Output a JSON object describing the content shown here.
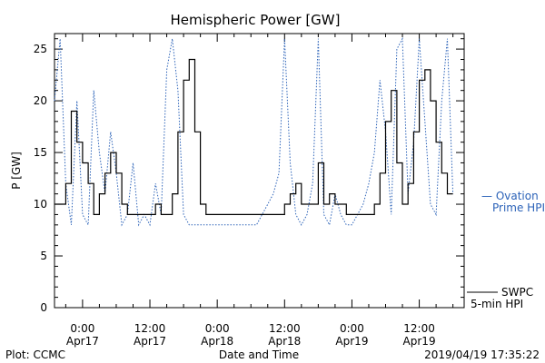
{
  "chart_data": {
    "type": "line",
    "title": "Hemispheric Power [GW]",
    "xlabel": "Date and Time",
    "ylabel": "P [GW]",
    "xlim": [
      "2019-04-16 19:00",
      "2019-04-19 20:00"
    ],
    "ylim": [
      0,
      26.5
    ],
    "yticks": [
      0,
      5,
      10,
      15,
      20,
      25
    ],
    "xticks": [
      {
        "time": "2019-04-17 00:00",
        "line1": "0:00",
        "line2": "Apr17"
      },
      {
        "time": "2019-04-17 12:00",
        "line1": "12:00",
        "line2": "Apr17"
      },
      {
        "time": "2019-04-18 00:00",
        "line1": "0:00",
        "line2": "Apr18"
      },
      {
        "time": "2019-04-18 12:00",
        "line1": "12:00",
        "line2": "Apr18"
      },
      {
        "time": "2019-04-19 00:00",
        "line1": "0:00",
        "line2": "Apr19"
      },
      {
        "time": "2019-04-19 12:00",
        "line1": "12:00",
        "line2": "Apr19"
      }
    ],
    "grid": false,
    "legend_position": "right",
    "series": [
      {
        "name": "SWPC 5-min HPI",
        "legend_lines": [
          "SWPC",
          "5-min HPI"
        ],
        "color": "#000000",
        "style": "solid",
        "x": [
          "2019-04-16 19:00",
          "2019-04-16 20:00",
          "2019-04-16 21:00",
          "2019-04-16 22:00",
          "2019-04-16 23:00",
          "2019-04-17 00:00",
          "2019-04-17 01:00",
          "2019-04-17 02:00",
          "2019-04-17 03:00",
          "2019-04-17 04:00",
          "2019-04-17 05:00",
          "2019-04-17 06:00",
          "2019-04-17 07:00",
          "2019-04-17 08:00",
          "2019-04-17 09:00",
          "2019-04-17 10:00",
          "2019-04-17 11:00",
          "2019-04-17 12:00",
          "2019-04-17 13:00",
          "2019-04-17 14:00",
          "2019-04-17 15:00",
          "2019-04-17 16:00",
          "2019-04-17 17:00",
          "2019-04-17 18:00",
          "2019-04-17 19:00",
          "2019-04-17 20:00",
          "2019-04-17 21:00",
          "2019-04-17 22:00",
          "2019-04-17 23:00",
          "2019-04-18 00:00",
          "2019-04-18 01:00",
          "2019-04-18 02:00",
          "2019-04-18 03:00",
          "2019-04-18 04:00",
          "2019-04-18 05:00",
          "2019-04-18 06:00",
          "2019-04-18 07:00",
          "2019-04-18 08:00",
          "2019-04-18 09:00",
          "2019-04-18 10:00",
          "2019-04-18 11:00",
          "2019-04-18 12:00",
          "2019-04-18 13:00",
          "2019-04-18 14:00",
          "2019-04-18 15:00",
          "2019-04-18 16:00",
          "2019-04-18 17:00",
          "2019-04-18 18:00",
          "2019-04-18 19:00",
          "2019-04-18 20:00",
          "2019-04-18 21:00",
          "2019-04-18 22:00",
          "2019-04-18 23:00",
          "2019-04-19 00:00",
          "2019-04-19 01:00",
          "2019-04-19 02:00",
          "2019-04-19 03:00",
          "2019-04-19 04:00",
          "2019-04-19 05:00",
          "2019-04-19 06:00",
          "2019-04-19 07:00",
          "2019-04-19 08:00",
          "2019-04-19 09:00",
          "2019-04-19 10:00",
          "2019-04-19 11:00",
          "2019-04-19 12:00",
          "2019-04-19 13:00",
          "2019-04-19 14:00",
          "2019-04-19 15:00",
          "2019-04-19 16:00",
          "2019-04-19 17:00",
          "2019-04-19 18:00"
        ],
        "y": [
          10,
          10,
          12,
          19,
          16,
          14,
          12,
          9,
          11,
          13,
          15,
          13,
          10,
          9,
          9,
          9,
          9,
          9,
          10,
          9,
          9,
          11,
          17,
          22,
          24,
          17,
          10,
          9,
          9,
          9,
          9,
          9,
          9,
          9,
          9,
          9,
          9,
          9,
          9,
          9,
          9,
          10,
          11,
          12,
          10,
          10,
          10,
          14,
          10,
          11,
          10,
          10,
          9,
          9,
          9,
          9,
          9,
          10,
          13,
          18,
          21,
          14,
          10,
          12,
          17,
          22,
          23,
          20,
          16,
          13,
          11,
          11
        ]
      },
      {
        "name": "Ovation Prime HPI",
        "legend_lines": [
          "— Ovation",
          "Prime HPI"
        ],
        "color": "#2b62b8",
        "style": "dotted",
        "x": [
          "2019-04-16 19:00",
          "2019-04-16 20:00",
          "2019-04-16 21:00",
          "2019-04-16 22:00",
          "2019-04-16 23:00",
          "2019-04-17 00:00",
          "2019-04-17 01:00",
          "2019-04-17 02:00",
          "2019-04-17 03:00",
          "2019-04-17 04:00",
          "2019-04-17 05:00",
          "2019-04-17 06:00",
          "2019-04-17 07:00",
          "2019-04-17 08:00",
          "2019-04-17 09:00",
          "2019-04-17 10:00",
          "2019-04-17 11:00",
          "2019-04-17 12:00",
          "2019-04-17 13:00",
          "2019-04-17 14:00",
          "2019-04-17 15:00",
          "2019-04-17 16:00",
          "2019-04-17 17:00",
          "2019-04-17 18:00",
          "2019-04-17 19:00",
          "2019-04-17 20:00",
          "2019-04-17 21:00",
          "2019-04-17 22:00",
          "2019-04-17 23:00",
          "2019-04-18 00:00",
          "2019-04-18 01:00",
          "2019-04-18 02:00",
          "2019-04-18 03:00",
          "2019-04-18 04:00",
          "2019-04-18 05:00",
          "2019-04-18 06:00",
          "2019-04-18 07:00",
          "2019-04-18 08:00",
          "2019-04-18 09:00",
          "2019-04-18 10:00",
          "2019-04-18 11:00",
          "2019-04-18 12:00",
          "2019-04-18 13:00",
          "2019-04-18 14:00",
          "2019-04-18 15:00",
          "2019-04-18 16:00",
          "2019-04-18 17:00",
          "2019-04-18 18:00",
          "2019-04-18 19:00",
          "2019-04-18 20:00",
          "2019-04-18 21:00",
          "2019-04-18 22:00",
          "2019-04-18 23:00",
          "2019-04-19 00:00",
          "2019-04-19 01:00",
          "2019-04-19 02:00",
          "2019-04-19 03:00",
          "2019-04-19 04:00",
          "2019-04-19 05:00",
          "2019-04-19 06:00",
          "2019-04-19 07:00",
          "2019-04-19 08:00",
          "2019-04-19 09:00",
          "2019-04-19 10:00",
          "2019-04-19 11:00",
          "2019-04-19 12:00",
          "2019-04-19 13:00",
          "2019-04-19 14:00",
          "2019-04-19 15:00",
          "2019-04-19 16:00",
          "2019-04-19 17:00",
          "2019-04-19 18:00"
        ],
        "y": [
          20,
          26,
          12,
          8,
          20,
          9,
          8,
          21,
          15,
          11,
          17,
          13,
          8,
          9,
          14,
          8,
          9,
          8,
          12,
          9,
          23,
          26,
          21,
          9,
          8,
          8,
          8,
          8,
          8,
          8,
          8,
          8,
          8,
          8,
          8,
          8,
          8,
          9,
          10,
          11,
          13,
          26,
          14,
          9,
          8,
          9,
          12,
          26,
          9,
          8,
          11,
          9,
          8,
          8,
          9,
          10,
          12,
          15,
          22,
          17,
          9,
          25,
          26,
          11,
          16,
          26,
          18,
          10,
          9,
          20,
          26,
          11
        ]
      }
    ]
  },
  "footer": {
    "plot_credit": "Plot: CCMC",
    "timestamp": "2019/04/19 17:35:22"
  }
}
